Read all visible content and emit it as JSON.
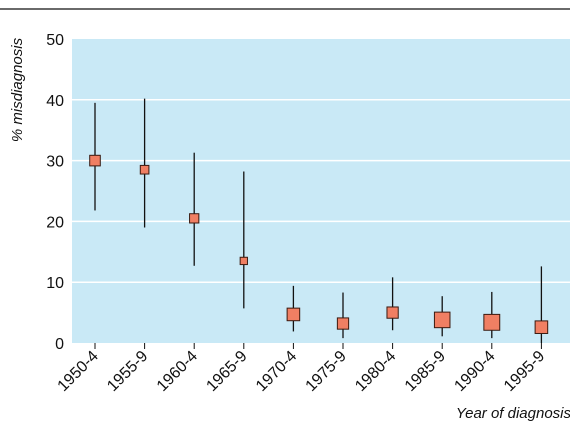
{
  "chart_data": {
    "type": "scatter",
    "title": "",
    "xlabel": "Year of diagnosis",
    "ylabel": "% misdiagnosis",
    "ylim": [
      0,
      50
    ],
    "yticks": [
      0,
      10,
      20,
      30,
      40,
      50
    ],
    "grid": "horizontal",
    "categories": [
      "1950-4",
      "1955-9",
      "1960-4",
      "1965-9",
      "1970-4",
      "1975-9",
      "1980-4",
      "1985-9",
      "1990-4",
      "1995-9"
    ],
    "series": [
      {
        "values": [
          30,
          28.5,
          20.5,
          13.5,
          4.7,
          3.2,
          5.0,
          3.8,
          3.4,
          2.6
        ],
        "lower": [
          21.8,
          19.0,
          12.7,
          5.7,
          1.9,
          0.8,
          2.1,
          1.1,
          0.8,
          0.0
        ],
        "upper": [
          39.5,
          40.2,
          31.3,
          28.2,
          9.4,
          8.3,
          10.8,
          7.7,
          8.4,
          12.6
        ],
        "weight": [
          2,
          1.4,
          1.6,
          1,
          2.6,
          2.2,
          2.2,
          3.5,
          3.6,
          2.6
        ]
      }
    ],
    "colors": {
      "plot_background": "#c9e9f6",
      "gridline": "#ffffff",
      "marker_fill": "#f07f63",
      "marker_stroke": "#3a1a10",
      "error_bar": "#111111"
    }
  }
}
